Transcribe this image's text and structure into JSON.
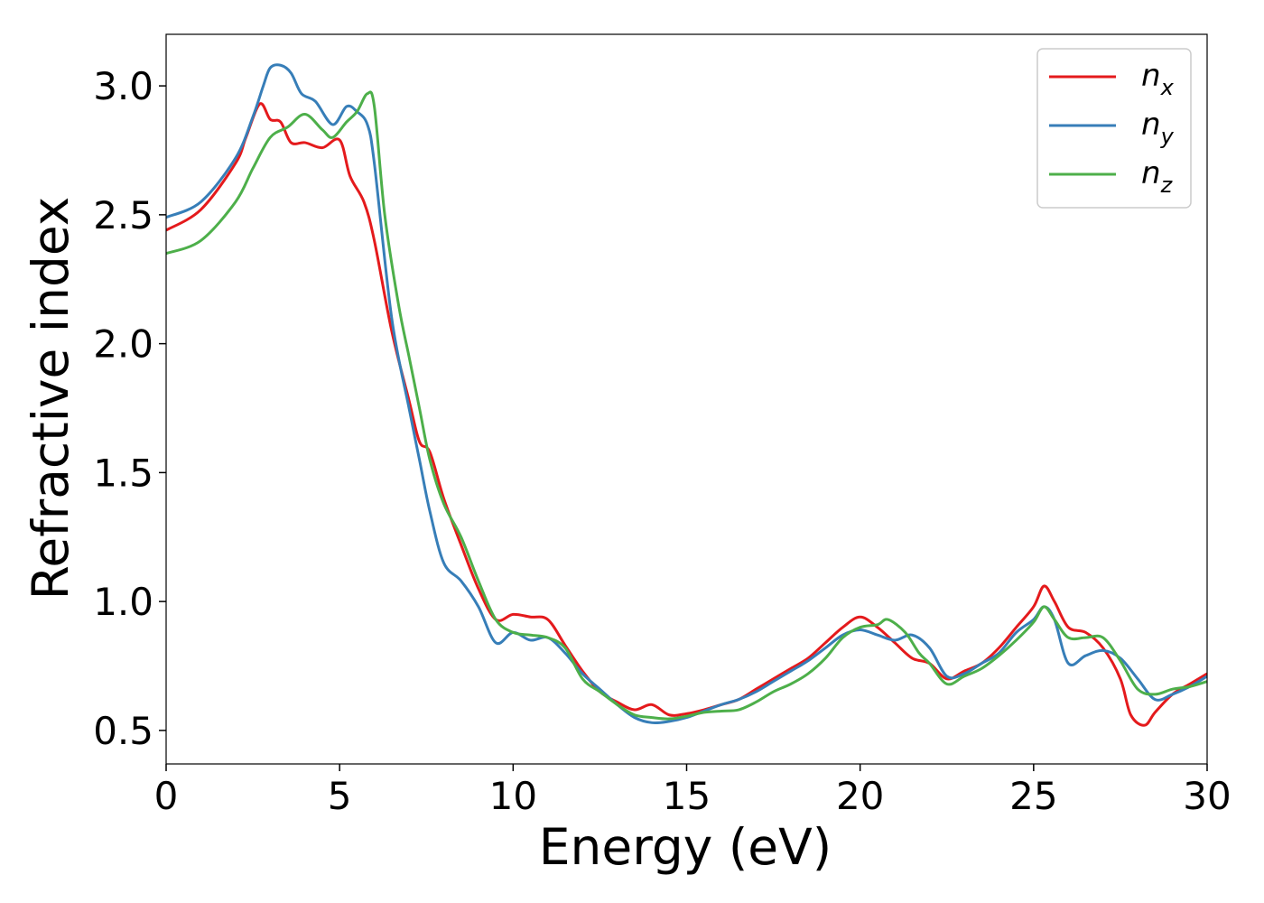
{
  "chart_data": {
    "type": "line",
    "title": "",
    "xlabel": "Energy (eV)",
    "ylabel": "Refractive index",
    "xlim": [
      0,
      30
    ],
    "ylim": [
      0.37,
      3.2
    ],
    "xticks": [
      0,
      5,
      10,
      15,
      20,
      25,
      30
    ],
    "xtick_labels": [
      "0",
      "5",
      "10",
      "15",
      "20",
      "25",
      "30"
    ],
    "yticks": [
      0.5,
      1.0,
      1.5,
      2.0,
      2.5,
      3.0
    ],
    "ytick_labels": [
      "0.5",
      "1.0",
      "1.5",
      "2.0",
      "2.5",
      "3.0"
    ],
    "grid": false,
    "legend_position": "top-right",
    "series": [
      {
        "name": "n_x",
        "label_base": "n",
        "label_sub": "x",
        "color": "#e41a1c",
        "x": [
          0,
          1,
          2,
          2.3,
          2.7,
          3.0,
          3.3,
          3.6,
          4.0,
          4.5,
          5.0,
          5.3,
          5.7,
          6.0,
          6.5,
          7.0,
          7.3,
          7.6,
          8.0,
          8.5,
          9.0,
          9.5,
          10.0,
          10.5,
          11.0,
          11.5,
          12.0,
          12.5,
          13.0,
          13.5,
          14.0,
          14.5,
          15.0,
          15.5,
          16.0,
          16.5,
          17.0,
          17.5,
          18.0,
          18.5,
          19.0,
          19.5,
          20.0,
          20.5,
          21.0,
          21.5,
          22.0,
          22.5,
          23.0,
          23.5,
          24.0,
          24.5,
          25.0,
          25.3,
          25.6,
          26.0,
          26.5,
          27.0,
          27.5,
          27.8,
          28.2,
          28.5,
          29.0,
          29.5,
          30.0
        ],
        "y": [
          2.44,
          2.52,
          2.7,
          2.8,
          2.93,
          2.87,
          2.86,
          2.78,
          2.78,
          2.76,
          2.79,
          2.65,
          2.55,
          2.4,
          2.05,
          1.78,
          1.62,
          1.58,
          1.4,
          1.22,
          1.05,
          0.93,
          0.95,
          0.94,
          0.93,
          0.83,
          0.73,
          0.65,
          0.61,
          0.58,
          0.6,
          0.56,
          0.565,
          0.58,
          0.6,
          0.62,
          0.66,
          0.7,
          0.74,
          0.78,
          0.84,
          0.9,
          0.94,
          0.9,
          0.84,
          0.78,
          0.76,
          0.7,
          0.73,
          0.76,
          0.82,
          0.9,
          0.98,
          1.06,
          1.0,
          0.9,
          0.88,
          0.82,
          0.7,
          0.56,
          0.52,
          0.57,
          0.64,
          0.68,
          0.72
        ]
      },
      {
        "name": "n_y",
        "label_base": "n",
        "label_sub": "y",
        "color": "#377eb8",
        "x": [
          0,
          1,
          2,
          2.5,
          2.8,
          3.0,
          3.3,
          3.6,
          3.9,
          4.3,
          4.8,
          5.2,
          5.5,
          5.8,
          6.0,
          6.5,
          7.0,
          7.3,
          7.6,
          8.0,
          8.5,
          9.0,
          9.5,
          10.0,
          10.5,
          11.0,
          11.5,
          12.0,
          12.5,
          13.0,
          13.5,
          14.0,
          14.5,
          15.0,
          15.5,
          16.0,
          16.5,
          17.0,
          17.5,
          18.0,
          18.5,
          19.0,
          19.5,
          20.0,
          20.5,
          21.0,
          21.5,
          22.0,
          22.5,
          23.0,
          23.5,
          24.0,
          24.5,
          25.0,
          25.3,
          25.6,
          26.0,
          26.5,
          27.0,
          27.5,
          28.0,
          28.5,
          29.0,
          29.5,
          30.0
        ],
        "y": [
          2.49,
          2.55,
          2.72,
          2.88,
          3.0,
          3.07,
          3.08,
          3.05,
          2.97,
          2.94,
          2.85,
          2.92,
          2.9,
          2.85,
          2.7,
          2.1,
          1.75,
          1.55,
          1.35,
          1.15,
          1.08,
          0.98,
          0.84,
          0.88,
          0.85,
          0.86,
          0.8,
          0.72,
          0.66,
          0.6,
          0.55,
          0.53,
          0.535,
          0.55,
          0.575,
          0.6,
          0.62,
          0.65,
          0.69,
          0.73,
          0.77,
          0.82,
          0.87,
          0.89,
          0.87,
          0.85,
          0.87,
          0.82,
          0.71,
          0.72,
          0.76,
          0.8,
          0.88,
          0.93,
          0.98,
          0.93,
          0.76,
          0.79,
          0.81,
          0.78,
          0.7,
          0.62,
          0.64,
          0.67,
          0.71
        ]
      },
      {
        "name": "n_z",
        "label_base": "n",
        "label_sub": "z",
        "color": "#4daf4a",
        "x": [
          0,
          1,
          2,
          2.5,
          3.0,
          3.5,
          4.0,
          4.5,
          4.8,
          5.2,
          5.5,
          5.8,
          6.0,
          6.3,
          6.7,
          7.0,
          7.3,
          7.6,
          8.0,
          8.5,
          9.0,
          9.5,
          10.0,
          10.5,
          11.0,
          11.5,
          12.0,
          12.5,
          13.0,
          13.5,
          14.0,
          14.5,
          15.0,
          15.5,
          16.0,
          16.5,
          17.0,
          17.5,
          18.0,
          18.5,
          19.0,
          19.5,
          20.0,
          20.5,
          20.8,
          21.3,
          21.7,
          22.0,
          22.5,
          23.0,
          23.5,
          24.0,
          24.5,
          25.0,
          25.3,
          25.6,
          26.0,
          26.5,
          27.0,
          27.5,
          28.0,
          28.5,
          29.0,
          29.5,
          30.0
        ],
        "y": [
          2.35,
          2.4,
          2.55,
          2.68,
          2.8,
          2.84,
          2.89,
          2.83,
          2.8,
          2.86,
          2.9,
          2.97,
          2.92,
          2.5,
          2.15,
          1.95,
          1.75,
          1.55,
          1.38,
          1.25,
          1.08,
          0.93,
          0.88,
          0.87,
          0.86,
          0.82,
          0.7,
          0.65,
          0.6,
          0.56,
          0.55,
          0.545,
          0.555,
          0.57,
          0.575,
          0.58,
          0.61,
          0.65,
          0.68,
          0.72,
          0.78,
          0.86,
          0.9,
          0.91,
          0.93,
          0.88,
          0.8,
          0.76,
          0.68,
          0.71,
          0.74,
          0.79,
          0.85,
          0.92,
          0.98,
          0.93,
          0.86,
          0.86,
          0.86,
          0.77,
          0.66,
          0.64,
          0.66,
          0.67,
          0.69
        ]
      }
    ]
  }
}
